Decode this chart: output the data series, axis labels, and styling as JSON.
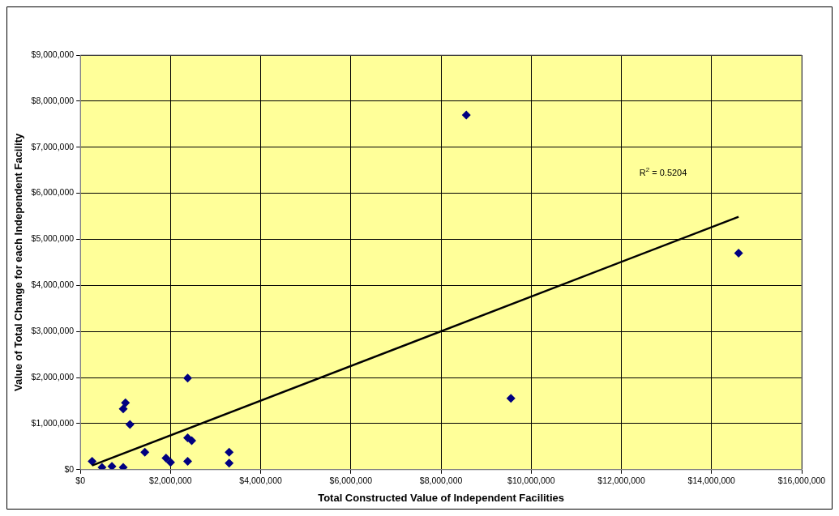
{
  "chart_data": {
    "type": "scatter",
    "xlabel": "Total Constructed Value of Independent Facilities",
    "ylabel": "Value of Total Change for each Independent Facility",
    "series": [
      {
        "type": "scatter",
        "color": "#000080",
        "marker": "diamond",
        "x": [
          260000,
          480000,
          700000,
          950000,
          950000,
          1000000,
          1100000,
          1430000,
          1900000,
          2000000,
          2380000,
          2380000,
          2470000,
          2380000,
          3300000,
          3300000,
          8560000,
          9550000,
          14600000
        ],
        "values": [
          180000,
          50000,
          70000,
          50000,
          1320000,
          1450000,
          980000,
          380000,
          250000,
          160000,
          1990000,
          690000,
          630000,
          180000,
          380000,
          140000,
          7700000,
          1550000,
          4700000
        ]
      },
      {
        "type": "line",
        "color": "#000000",
        "marker": "none",
        "line_style": "solid",
        "x": [
          260000,
          14600000
        ],
        "values": [
          90000,
          5490000
        ]
      }
    ],
    "annotations": [
      "R$^{2}$ = 0.5204"
    ],
    "xlim": [
      0,
      16000000
    ],
    "ylim": [
      0,
      9000000
    ],
    "xticks": [
      {
        "value": 0,
        "label": "$0"
      },
      {
        "value": 2000000,
        "label": "$2,000,000"
      },
      {
        "value": 4000000,
        "label": "$4,000,000"
      },
      {
        "value": 6000000,
        "label": "$6,000,000"
      },
      {
        "value": 8000000,
        "label": "$8,000,000"
      },
      {
        "value": 10000000,
        "label": "$10,000,000"
      },
      {
        "value": 12000000,
        "label": "$12,000,000"
      },
      {
        "value": 14000000,
        "label": "$14,000,000"
      },
      {
        "value": 16000000,
        "label": "$16,000,000"
      }
    ],
    "yticks": [
      {
        "value": 0,
        "label": "$0"
      },
      {
        "value": 1000000,
        "label": "$1,000,000"
      },
      {
        "value": 2000000,
        "label": "$2,000,000"
      },
      {
        "value": 3000000,
        "label": "$3,000,000"
      },
      {
        "value": 4000000,
        "label": "$4,000,000"
      },
      {
        "value": 5000000,
        "label": "$5,000,000"
      },
      {
        "value": 6000000,
        "label": "$6,000,000"
      },
      {
        "value": 7000000,
        "label": "$7,000,000"
      },
      {
        "value": 8000000,
        "label": "$8,000,000"
      },
      {
        "value": 9000000,
        "label": "$9,000,000"
      }
    ],
    "grid": true,
    "legend": false
  }
}
